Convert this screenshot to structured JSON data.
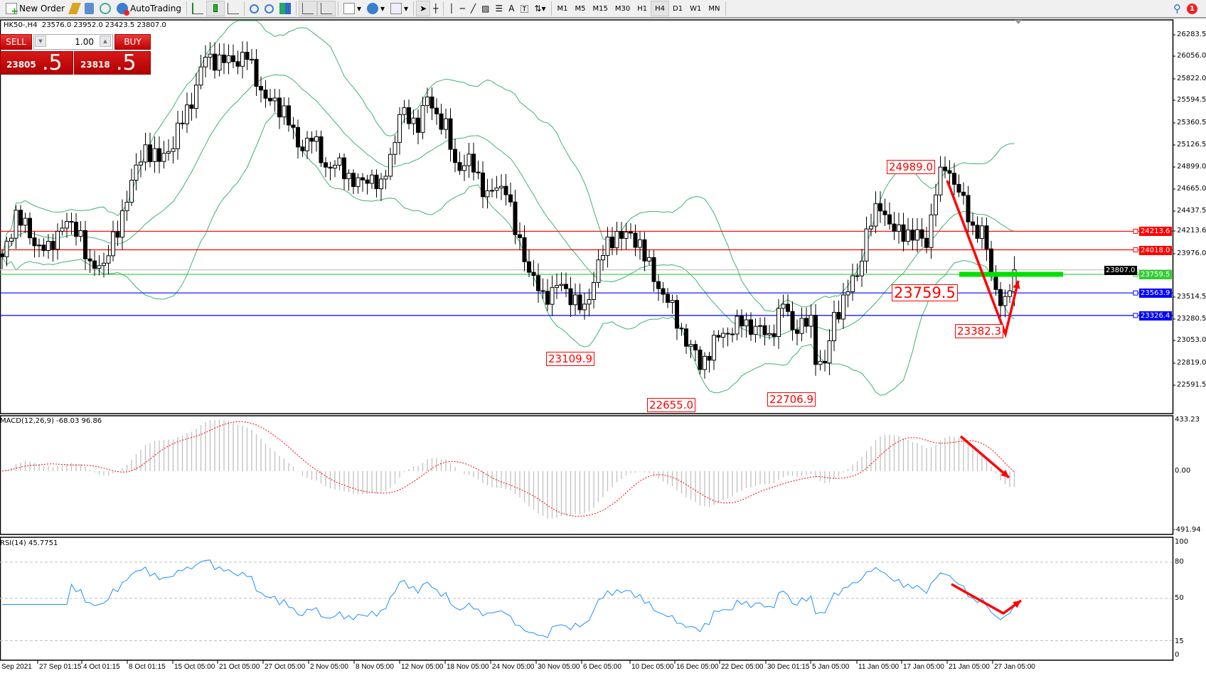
{
  "toolbar": {
    "new_order": "New Order",
    "autotrading": "AutoTrading",
    "periods": [
      "M1",
      "M5",
      "M15",
      "M30",
      "H1",
      "H4",
      "D1",
      "W1",
      "MN"
    ],
    "active_period": "H4",
    "notifications": "1"
  },
  "header": {
    "symbol": "HK50-,H4",
    "ohlc": "23576.0 23952.0 23423.5 23807.0"
  },
  "trade_panel": {
    "sell": "SELL",
    "buy": "BUY",
    "lots": "1.00",
    "sell_small": "23805",
    "sell_big": ".5",
    "buy_small": "23818",
    "buy_big": ".5"
  },
  "price_axis": {
    "ticks": [
      "26283.5",
      "26056.0",
      "25822.0",
      "25594.5",
      "25360.5",
      "25126.5",
      "24899.0",
      "24665.0",
      "24437.5",
      "24213.6",
      "23976.0",
      "23514.5",
      "23280.5",
      "23053.0",
      "22819.0",
      "22591.5"
    ]
  },
  "levels": [
    {
      "price": 24213.6,
      "label": "24213.6",
      "color": "#ff0000"
    },
    {
      "price": 24018.0,
      "label": "24018.0",
      "color": "#ff0000"
    },
    {
      "price": 23807.0,
      "label": "23807.0",
      "color": "#000000",
      "line": "#c0c0c0"
    },
    {
      "price": 23759.5,
      "label": "23759.5",
      "color": "#32cd32"
    },
    {
      "price": 23563.9,
      "label": "23563.9",
      "color": "#0000ff"
    },
    {
      "price": 23326.4,
      "label": "23326.4",
      "color": "#0000ff"
    }
  ],
  "annotations": [
    "24989.0",
    "23759.5",
    "23382.3",
    "23109.9",
    "22655.0",
    "22706.9"
  ],
  "macd": {
    "title": "MACD(12,26,9) -68.03 96.86",
    "max": "433.23",
    "zero": "0.00",
    "min": "-491.94"
  },
  "rsi": {
    "title": "RSI(14) 45.7751",
    "levels": [
      "100",
      "80",
      "50",
      "15",
      "0"
    ]
  },
  "time_axis": [
    "Sep 2021",
    "27 Sep 01:15",
    "4 Oct 01:15",
    "8 Oct 01:15",
    "15 Oct 05:00",
    "21 Oct 05:00",
    "27 Oct 05:00",
    "2 Nov 05:00",
    "8 Nov 05:00",
    "12 Nov 05:00",
    "18 Nov 05:00",
    "24 Nov 05:00",
    "30 Nov 05:00",
    "6 Dec 05:00",
    "10 Dec 05:00",
    "16 Dec 05:00",
    "22 Dec 05:00",
    "30 Dec 01:15",
    "5 Jan 05:00",
    "11 Jan 05:00",
    "17 Jan 05:00",
    "21 Jan 05:00",
    "27 Jan 05:00"
  ],
  "price_path": [
    [
      0,
      23900
    ],
    [
      3,
      24400
    ],
    [
      7,
      24100
    ],
    [
      10,
      24000
    ],
    [
      13,
      24300
    ],
    [
      17,
      24200
    ],
    [
      19,
      23800
    ],
    [
      22,
      23900
    ],
    [
      25,
      24200
    ],
    [
      27,
      24600
    ],
    [
      31,
      25100
    ],
    [
      34,
      24950
    ],
    [
      37,
      25150
    ],
    [
      41,
      25600
    ],
    [
      44,
      26050
    ],
    [
      48,
      26000
    ],
    [
      53,
      26050
    ],
    [
      57,
      25600
    ],
    [
      61,
      25500
    ],
    [
      64,
      25100
    ],
    [
      67,
      25200
    ],
    [
      70,
      24900
    ],
    [
      73,
      24900
    ],
    [
      77,
      24700
    ],
    [
      80,
      24800
    ],
    [
      82,
      24650
    ],
    [
      85,
      25200
    ],
    [
      86,
      25450
    ],
    [
      90,
      25350
    ],
    [
      92,
      25600
    ],
    [
      96,
      25300
    ],
    [
      98,
      24900
    ],
    [
      101,
      24950
    ],
    [
      105,
      24600
    ],
    [
      109,
      24700
    ],
    [
      111,
      24200
    ],
    [
      115,
      23700
    ],
    [
      117,
      23500
    ],
    [
      120,
      23650
    ],
    [
      124,
      23500
    ],
    [
      126,
      23350
    ],
    [
      129,
      23900
    ],
    [
      133,
      24200
    ],
    [
      138,
      24100
    ],
    [
      141,
      23700
    ],
    [
      144,
      23500
    ],
    [
      146,
      23250
    ],
    [
      150,
      22900
    ],
    [
      151,
      22800
    ],
    [
      155,
      23100
    ],
    [
      160,
      23250
    ],
    [
      163,
      23200
    ],
    [
      166,
      23100
    ],
    [
      169,
      23450
    ],
    [
      171,
      23200
    ],
    [
      175,
      23250
    ],
    [
      176,
      22900
    ],
    [
      178,
      22800
    ],
    [
      180,
      23300
    ],
    [
      183,
      23600
    ],
    [
      185,
      23750
    ],
    [
      187,
      24200
    ],
    [
      190,
      24500
    ],
    [
      193,
      24200
    ],
    [
      196,
      24200
    ],
    [
      200,
      24100
    ],
    [
      202,
      24650
    ],
    [
      204,
      24900
    ],
    [
      206,
      24750
    ],
    [
      210,
      24250
    ],
    [
      212,
      24200
    ],
    [
      215,
      23600
    ],
    [
      217,
      23420
    ],
    [
      219,
      23807
    ]
  ],
  "last_candle": {
    "open": 23576.0,
    "high": 23952.0,
    "low": 23423.5,
    "close": 23807.0
  },
  "colors": {
    "bands": "#3cb371",
    "macd_hist": "#c0c0c0",
    "macd_signal": "#ff0000",
    "rsi": "#1e90ff",
    "arrows": "#ff0000",
    "sell_buy": "#d81818"
  }
}
